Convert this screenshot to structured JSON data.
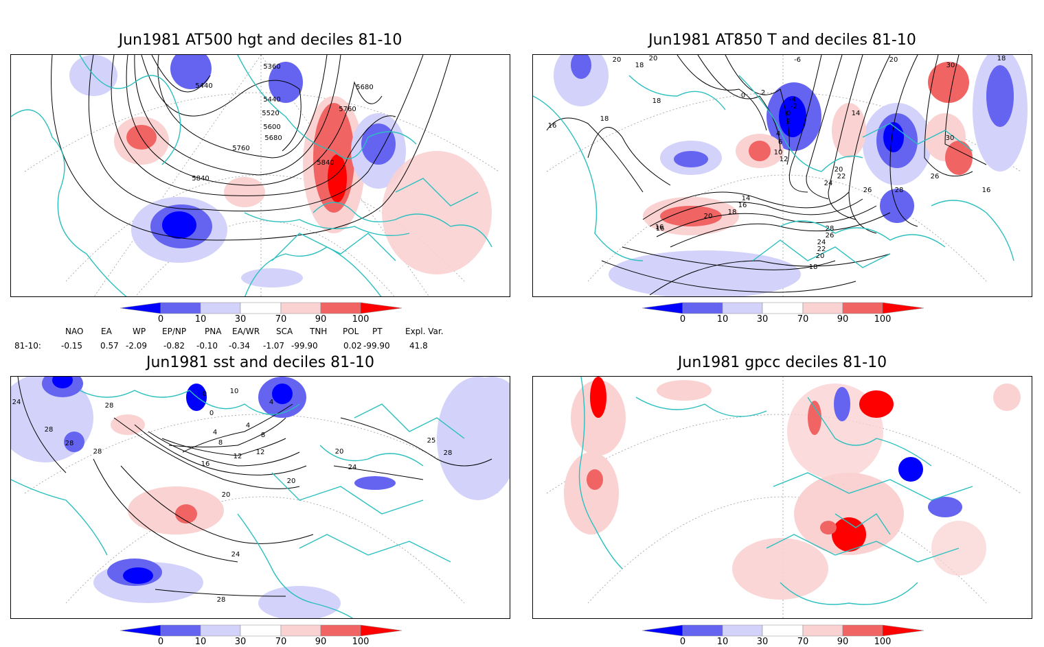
{
  "panels": [
    {
      "id": "tl",
      "title": "Jun1981 AT500 hgt and deciles 81-10",
      "contour_labels": [
        "5360",
        "5440",
        "5440",
        "5520",
        "5600",
        "5680",
        "5680",
        "5760",
        "5760",
        "5840",
        "5840"
      ]
    },
    {
      "id": "tr",
      "title": "Jun1981 AT850 T and deciles 81-10",
      "contour_labels": [
        "20",
        "20",
        "18",
        "18",
        "16",
        "18",
        "0",
        "2",
        "-6",
        "-4",
        "-2",
        "0",
        "2",
        "4",
        "6",
        "10",
        "12",
        "14",
        "14",
        "16",
        "18",
        "20",
        "20",
        "22",
        "24",
        "26",
        "28",
        "26",
        "24",
        "22",
        "20",
        "18",
        "16",
        "28",
        "30",
        "30",
        "26",
        "16",
        "18",
        "20",
        "16"
      ]
    },
    {
      "id": "bl",
      "title": "Jun1981 sst and deciles 81-10",
      "contour_labels": [
        "24",
        "28",
        "28",
        "28",
        "28",
        "0",
        "0",
        "10",
        "4",
        "4",
        "8",
        "8",
        "12",
        "16",
        "20",
        "20",
        "24",
        "20",
        "25",
        "28",
        "24",
        "28",
        "12",
        "4"
      ]
    },
    {
      "id": "br",
      "title": "Jun1981 gpcc deciles 81-10",
      "contour_labels": []
    }
  ],
  "colorbar": {
    "labels": [
      "0",
      "10",
      "30",
      "70",
      "90",
      "100"
    ],
    "colors": [
      "#0000ff",
      "#6464f0",
      "#d2d2fa",
      "#ffffff",
      "#fad2d2",
      "#f06464",
      "#ff0000"
    ]
  },
  "indices": {
    "headers": [
      "NAO",
      "EA",
      "WP",
      "EP/NP",
      "PNA",
      "EA/WR",
      "SCA",
      "TNH",
      "POL",
      "PT",
      "Expl. Var."
    ],
    "row_label": "81-10:",
    "values": [
      "-0.15",
      "0.57",
      "-2.09",
      "-0.82",
      "-0.10",
      "-0.34",
      "-1.07",
      "-99.90",
      "0.02",
      "-99.90",
      "41.8"
    ]
  },
  "map_colors": {
    "coast": "#2bbfbf",
    "contour": "#000000",
    "grid": "#9a9a9a"
  }
}
